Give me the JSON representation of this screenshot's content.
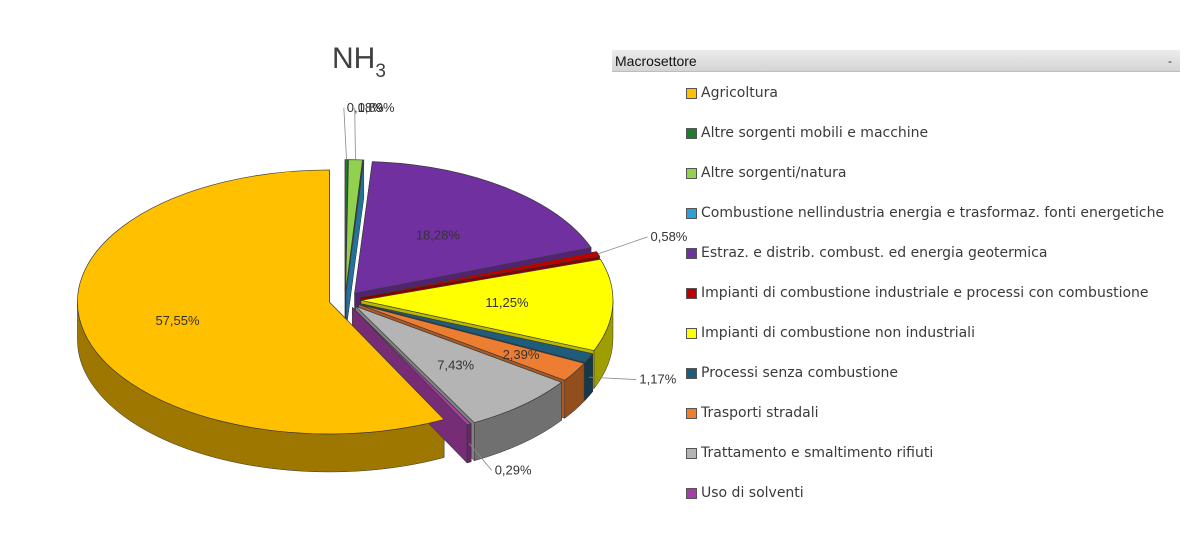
{
  "chart_data": {
    "type": "pie",
    "title": "NH",
    "title_subscript": "3",
    "legend_title": "Macrosettore",
    "legend_dropdown": "-",
    "legend_position": "right",
    "slices": [
      {
        "label": "Agricoltura",
        "value": 57.55,
        "value_label": "57,55%",
        "color": "#FFC000"
      },
      {
        "label": "Altre sorgenti mobili e macchine",
        "value": 0.18,
        "value_label": "0,18%",
        "color": "#1E7B30"
      },
      {
        "label": "Altre sorgenti/natura",
        "value": 0.89,
        "value_label": "0,89%",
        "color": "#92D050"
      },
      {
        "label": "Combustione nellindustria energia e trasformaz. fonti energetiche",
        "value": 0.05,
        "value_label": "",
        "color": "#2F9FD8"
      },
      {
        "label": "Estraz. e distrib. combust. ed energia geotermica",
        "value": 18.28,
        "value_label": "18,28%",
        "color": "#7030A0"
      },
      {
        "label": "Impianti di combustione industriale e processi con combustione",
        "value": 0.58,
        "value_label": "0,58%",
        "color": "#C00000"
      },
      {
        "label": "Impianti di combustione non industriali",
        "value": 11.25,
        "value_label": "11,25%",
        "color": "#FFFF00"
      },
      {
        "label": "Processi senza combustione",
        "value": 1.17,
        "value_label": "1,17%",
        "color": "#1F5C7A"
      },
      {
        "label": "Trasporti stradali",
        "value": 2.39,
        "value_label": "2,39%",
        "color": "#ED7D31"
      },
      {
        "label": "Trattamento e smaltimento rifiuti",
        "value": 7.43,
        "value_label": "7,43%",
        "color": "#B4B4B4"
      },
      {
        "label": "Uso di solventi",
        "value": 0.29,
        "value_label": "0,29%",
        "color": "#A43FA4"
      }
    ]
  }
}
